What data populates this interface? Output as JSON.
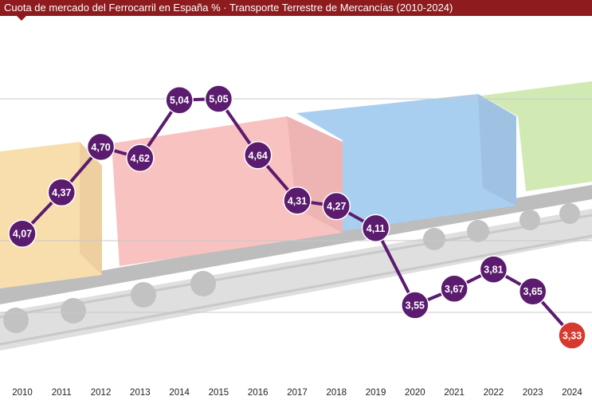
{
  "title": "Cuota de mercado del Ferrocarril en España %  · Transporte Terrestre de Mercancías (2010-2024)",
  "colors": {
    "title_bar": "#8e1b1d",
    "line": "#5b1b6e",
    "marker": "#5b1b6e",
    "marker_last": "#d63a2e",
    "label_text": "#ffffff",
    "gridline": "#c8c8c8",
    "axis_text": "#222222"
  },
  "background_illustration": "freight-train-with-containers",
  "chart_data": {
    "type": "line",
    "title": "Cuota de mercado del Ferrocarril en España %  · Transporte Terrestre de Mercancías (2010-2024)",
    "xlabel": "",
    "ylabel": "",
    "categories": [
      "2010",
      "2011",
      "2012",
      "2013",
      "2014",
      "2015",
      "2016",
      "2017",
      "2018",
      "2019",
      "2020",
      "2021",
      "2022",
      "2023",
      "2024"
    ],
    "series": [
      {
        "values": [
          4.07,
          4.37,
          4.7,
          4.62,
          5.04,
          5.05,
          4.64,
          4.31,
          4.27,
          4.11,
          3.55,
          3.67,
          3.81,
          3.65,
          3.33
        ],
        "labels": [
          "4,07",
          "4,37",
          "4,70",
          "4,62",
          "5,04",
          "5,05",
          "4,64",
          "4,31",
          "4,27",
          "4,11",
          "3,55",
          "3,67",
          "3,81",
          "3,65",
          "3,33"
        ]
      }
    ],
    "highlight_last": true,
    "grid": true,
    "legend": "none"
  }
}
